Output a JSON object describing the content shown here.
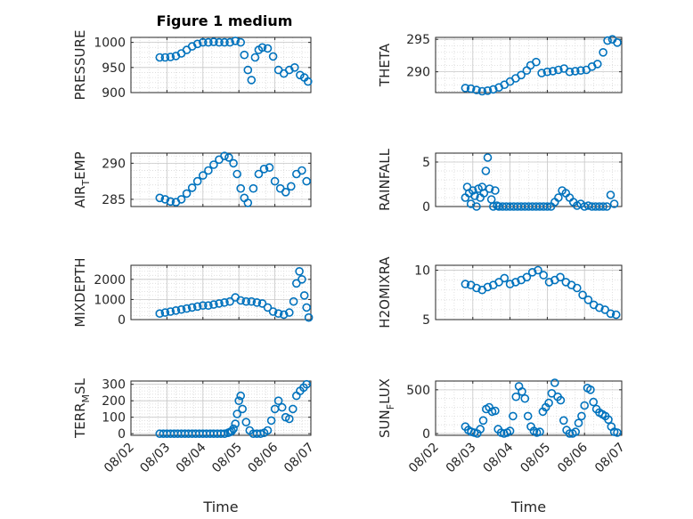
{
  "title": "Figure 1 medium",
  "marker_color": "#0072bd",
  "chart_data": [
    {
      "type": "scatter",
      "ylabel": "PRESSURE",
      "ylim": [
        900,
        1010
      ],
      "yticks": [
        900,
        950,
        1000
      ],
      "xlim": [
        0,
        5
      ],
      "x": [
        0.8,
        0.95,
        1.1,
        1.25,
        1.4,
        1.55,
        1.7,
        1.85,
        2.0,
        2.15,
        2.3,
        2.45,
        2.6,
        2.75,
        2.9,
        3.05,
        3.15,
        3.25,
        3.35,
        3.45,
        3.55,
        3.65,
        3.8,
        3.95,
        4.1,
        4.25,
        4.4,
        4.55,
        4.7,
        4.82,
        4.92
      ],
      "y": [
        970,
        970,
        971,
        973,
        978,
        985,
        992,
        997,
        1000,
        1000,
        1001,
        1000,
        1000,
        1000,
        1003,
        1000,
        975,
        945,
        925,
        970,
        985,
        990,
        988,
        972,
        945,
        938,
        945,
        950,
        935,
        930,
        922
      ]
    },
    {
      "type": "scatter",
      "ylabel": "THETA",
      "ylim": [
        286.8,
        295.3
      ],
      "yticks": [
        290,
        295
      ],
      "xlim": [
        0,
        5
      ],
      "x": [
        0.8,
        0.95,
        1.1,
        1.25,
        1.4,
        1.55,
        1.7,
        1.85,
        2.0,
        2.15,
        2.3,
        2.45,
        2.55,
        2.7,
        2.85,
        3.0,
        3.15,
        3.3,
        3.45,
        3.6,
        3.75,
        3.9,
        4.05,
        4.2,
        4.35,
        4.5,
        4.62,
        4.75,
        4.88
      ],
      "y": [
        287.5,
        287.4,
        287.2,
        287.0,
        287.1,
        287.3,
        287.6,
        288.0,
        288.5,
        289.0,
        289.5,
        290.2,
        291.0,
        291.5,
        289.8,
        290.0,
        290.1,
        290.3,
        290.5,
        290.0,
        290.1,
        290.2,
        290.3,
        290.8,
        291.2,
        293.0,
        294.8,
        295.0,
        294.5
      ]
    },
    {
      "type": "scatter",
      "ylabel_base": "AIR",
      "ylabel_sub": "T",
      "ylabel_rest": "EMP",
      "ylim": [
        284,
        291.4
      ],
      "yticks": [
        285,
        290
      ],
      "xlim": [
        0,
        5
      ],
      "x": [
        0.8,
        0.95,
        1.1,
        1.25,
        1.4,
        1.55,
        1.7,
        1.85,
        2.0,
        2.15,
        2.3,
        2.45,
        2.6,
        2.72,
        2.85,
        2.95,
        3.05,
        3.15,
        3.25,
        3.4,
        3.55,
        3.7,
        3.85,
        4.0,
        4.15,
        4.3,
        4.45,
        4.6,
        4.75,
        4.88
      ],
      "y": [
        285.2,
        285.0,
        284.7,
        284.6,
        285.0,
        285.8,
        286.6,
        287.5,
        288.3,
        289.0,
        289.8,
        290.5,
        291.0,
        290.8,
        290.0,
        288.5,
        286.5,
        285.2,
        284.5,
        286.5,
        288.5,
        289.2,
        289.4,
        287.5,
        286.5,
        286.0,
        286.8,
        288.5,
        289.0,
        287.5
      ]
    },
    {
      "type": "scatter",
      "ylabel": "RAINFALL",
      "ylim": [
        0,
        6
      ],
      "yticks": [
        0,
        5
      ],
      "xlim": [
        0,
        5
      ],
      "x": [
        0.8,
        0.85,
        0.9,
        0.95,
        1.0,
        1.05,
        1.1,
        1.15,
        1.2,
        1.25,
        1.3,
        1.35,
        1.4,
        1.45,
        1.5,
        1.55,
        1.6,
        1.65,
        1.7,
        1.8,
        1.9,
        2.0,
        2.1,
        2.2,
        2.3,
        2.4,
        2.5,
        2.6,
        2.7,
        2.8,
        2.9,
        3.0,
        3.1,
        3.2,
        3.3,
        3.4,
        3.5,
        3.6,
        3.7,
        3.8,
        3.9,
        4.0,
        4.1,
        4.2,
        4.3,
        4.4,
        4.5,
        4.6,
        4.7,
        4.8
      ],
      "y": [
        1.0,
        2.2,
        1.5,
        0.3,
        1.8,
        1.2,
        0.0,
        2.0,
        1.0,
        2.2,
        1.5,
        4.0,
        5.5,
        2.0,
        0.8,
        0.0,
        1.8,
        0.1,
        0.0,
        0.0,
        0.0,
        0.0,
        0.0,
        0.0,
        0.0,
        0.0,
        0.0,
        0.0,
        0.0,
        0.0,
        0.0,
        0.0,
        0.0,
        0.5,
        1.0,
        1.8,
        1.5,
        1.0,
        0.5,
        0.1,
        0.3,
        0.0,
        0.1,
        0.0,
        0.0,
        0.0,
        0.0,
        0.0,
        1.3,
        0.3
      ]
    },
    {
      "type": "scatter",
      "ylabel": "MIXDEPTH",
      "ylim": [
        0,
        2700
      ],
      "yticks": [
        0,
        1000,
        2000
      ],
      "xlim": [
        0,
        5
      ],
      "x": [
        0.8,
        0.95,
        1.1,
        1.25,
        1.4,
        1.55,
        1.7,
        1.85,
        2.0,
        2.15,
        2.3,
        2.45,
        2.6,
        2.75,
        2.9,
        3.05,
        3.2,
        3.35,
        3.5,
        3.65,
        3.8,
        3.95,
        4.1,
        4.25,
        4.4,
        4.52,
        4.6,
        4.68,
        4.75,
        4.82,
        4.88,
        4.94
      ],
      "y": [
        300,
        350,
        400,
        450,
        500,
        550,
        600,
        650,
        700,
        700,
        750,
        800,
        850,
        900,
        1100,
        950,
        900,
        900,
        850,
        800,
        600,
        400,
        300,
        250,
        350,
        900,
        1800,
        2400,
        2000,
        1200,
        600,
        100
      ]
    },
    {
      "type": "scatter",
      "ylabel": "H2OMIXRA",
      "ylim": [
        5,
        10.5
      ],
      "yticks": [
        5,
        10
      ],
      "xlim": [
        0,
        5
      ],
      "x": [
        0.8,
        0.95,
        1.1,
        1.25,
        1.4,
        1.55,
        1.7,
        1.85,
        2.0,
        2.15,
        2.3,
        2.45,
        2.6,
        2.75,
        2.9,
        3.05,
        3.2,
        3.35,
        3.5,
        3.65,
        3.8,
        3.95,
        4.1,
        4.25,
        4.4,
        4.55,
        4.7,
        4.85
      ],
      "y": [
        8.6,
        8.5,
        8.2,
        8.0,
        8.3,
        8.5,
        8.8,
        9.2,
        8.6,
        8.8,
        9.0,
        9.3,
        9.8,
        10.0,
        9.5,
        8.8,
        9.0,
        9.3,
        8.8,
        8.5,
        8.2,
        7.5,
        7.0,
        6.5,
        6.2,
        6.0,
        5.6,
        5.5
      ]
    },
    {
      "type": "scatter",
      "ylabel_base": "TERR",
      "ylabel_sub": "M",
      "ylabel_rest": "SL",
      "ylim": [
        -10,
        320
      ],
      "yticks": [
        0,
        100,
        200,
        300
      ],
      "xlim": [
        0,
        5
      ],
      "xticks": [
        "08/02",
        "08/03",
        "08/04",
        "08/05",
        "08/06",
        "08/07"
      ],
      "xlabel": "Time",
      "x": [
        0.8,
        0.9,
        1.0,
        1.1,
        1.2,
        1.3,
        1.4,
        1.5,
        1.6,
        1.7,
        1.8,
        1.9,
        2.0,
        2.1,
        2.2,
        2.3,
        2.4,
        2.5,
        2.6,
        2.7,
        2.75,
        2.8,
        2.85,
        2.9,
        2.95,
        3.0,
        3.05,
        3.1,
        3.2,
        3.3,
        3.4,
        3.5,
        3.6,
        3.7,
        3.8,
        3.9,
        4.0,
        4.1,
        4.2,
        4.3,
        4.4,
        4.5,
        4.6,
        4.7,
        4.8,
        4.88
      ],
      "y": [
        0,
        0,
        0,
        0,
        0,
        0,
        0,
        0,
        0,
        0,
        0,
        0,
        0,
        0,
        0,
        0,
        0,
        0,
        0,
        5,
        10,
        15,
        30,
        60,
        120,
        200,
        230,
        150,
        70,
        20,
        0,
        0,
        0,
        5,
        20,
        80,
        150,
        200,
        160,
        100,
        90,
        150,
        230,
        260,
        280,
        300
      ]
    },
    {
      "type": "scatter",
      "ylabel_base": "SUN",
      "ylabel_sub": "F",
      "ylabel_rest": "LUX",
      "ylim": [
        -20,
        600
      ],
      "yticks": [
        0,
        500
      ],
      "xlim": [
        0,
        5
      ],
      "xticks": [
        "08/02",
        "08/03",
        "08/04",
        "08/05",
        "08/06",
        "08/07"
      ],
      "xlabel": "Time",
      "x": [
        0.8,
        0.88,
        0.96,
        1.04,
        1.12,
        1.2,
        1.28,
        1.36,
        1.44,
        1.52,
        1.6,
        1.68,
        1.76,
        1.84,
        1.92,
        2.0,
        2.08,
        2.16,
        2.24,
        2.32,
        2.4,
        2.48,
        2.56,
        2.64,
        2.72,
        2.8,
        2.88,
        2.96,
        3.04,
        3.12,
        3.2,
        3.28,
        3.36,
        3.44,
        3.52,
        3.6,
        3.68,
        3.76,
        3.84,
        3.92,
        4.0,
        4.08,
        4.16,
        4.24,
        4.32,
        4.4,
        4.48,
        4.56,
        4.64,
        4.72,
        4.8,
        4.88
      ],
      "y": [
        80,
        40,
        20,
        10,
        0,
        50,
        150,
        280,
        300,
        250,
        260,
        50,
        10,
        0,
        10,
        30,
        200,
        420,
        540,
        480,
        400,
        200,
        80,
        30,
        10,
        20,
        250,
        300,
        350,
        460,
        580,
        420,
        380,
        150,
        40,
        0,
        0,
        20,
        120,
        200,
        320,
        520,
        500,
        360,
        280,
        240,
        220,
        200,
        160,
        80,
        20,
        10
      ]
    }
  ]
}
